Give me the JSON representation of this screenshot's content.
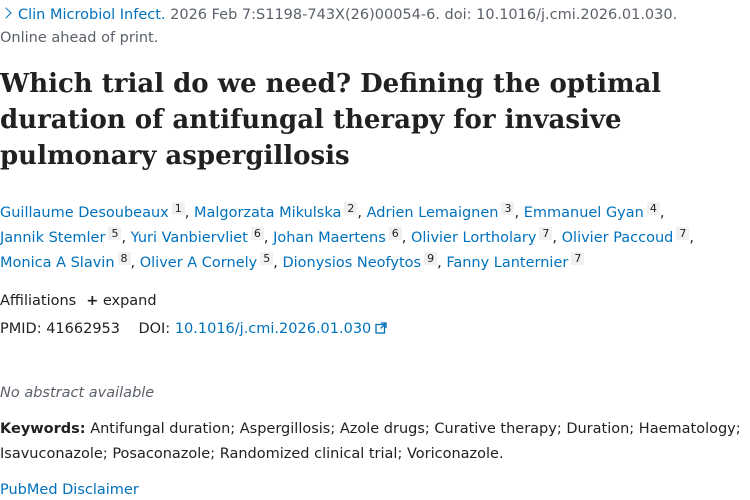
{
  "citation": {
    "journal": "Clin Microbiol Infect.",
    "details": "2026 Feb 7:S1198-743X(26)00054-6. doi: 10.1016/j.cmi.2026.01.030.",
    "status": "Online ahead of print."
  },
  "title": "Which trial do we need? Defining the optimal duration of antifungal therapy for invasive pulmonary aspergillosis",
  "authors": [
    {
      "name": "Guillaume Desoubeaux",
      "aff": "1"
    },
    {
      "name": "Malgorzata Mikulska",
      "aff": "2"
    },
    {
      "name": "Adrien Lemaignen",
      "aff": "3"
    },
    {
      "name": "Emmanuel Gyan",
      "aff": "4"
    },
    {
      "name": "Jannik Stemler",
      "aff": "5"
    },
    {
      "name": "Yuri Vanbiervliet",
      "aff": "6"
    },
    {
      "name": "Johan Maertens",
      "aff": "6"
    },
    {
      "name": "Olivier Lortholary",
      "aff": "7"
    },
    {
      "name": "Olivier Paccoud",
      "aff": "7"
    },
    {
      "name": "Monica A Slavin",
      "aff": "8"
    },
    {
      "name": "Oliver A Cornely",
      "aff": "5"
    },
    {
      "name": "Dionysios Neofytos",
      "aff": "9"
    },
    {
      "name": "Fanny Lanternier",
      "aff": "7"
    }
  ],
  "affiliations": {
    "label": "Affiliations",
    "expand_label": "expand"
  },
  "identifiers": {
    "pmid_label": "PMID:",
    "pmid": "41662953",
    "doi_label": "DOI:",
    "doi": "10.1016/j.cmi.2026.01.030"
  },
  "abstract_note": "No abstract available",
  "keywords": {
    "label": "Keywords:",
    "text": "Antifungal duration; Aspergillosis; Azole drugs; Curative therapy; Duration; Haematology; Isavuconazole; Posaconazole; Randomized clinical trial; Voriconazole."
  },
  "disclaimer": "PubMed Disclaimer",
  "colors": {
    "link": "#0071bc",
    "text": "#212121",
    "muted": "#5b616b"
  }
}
